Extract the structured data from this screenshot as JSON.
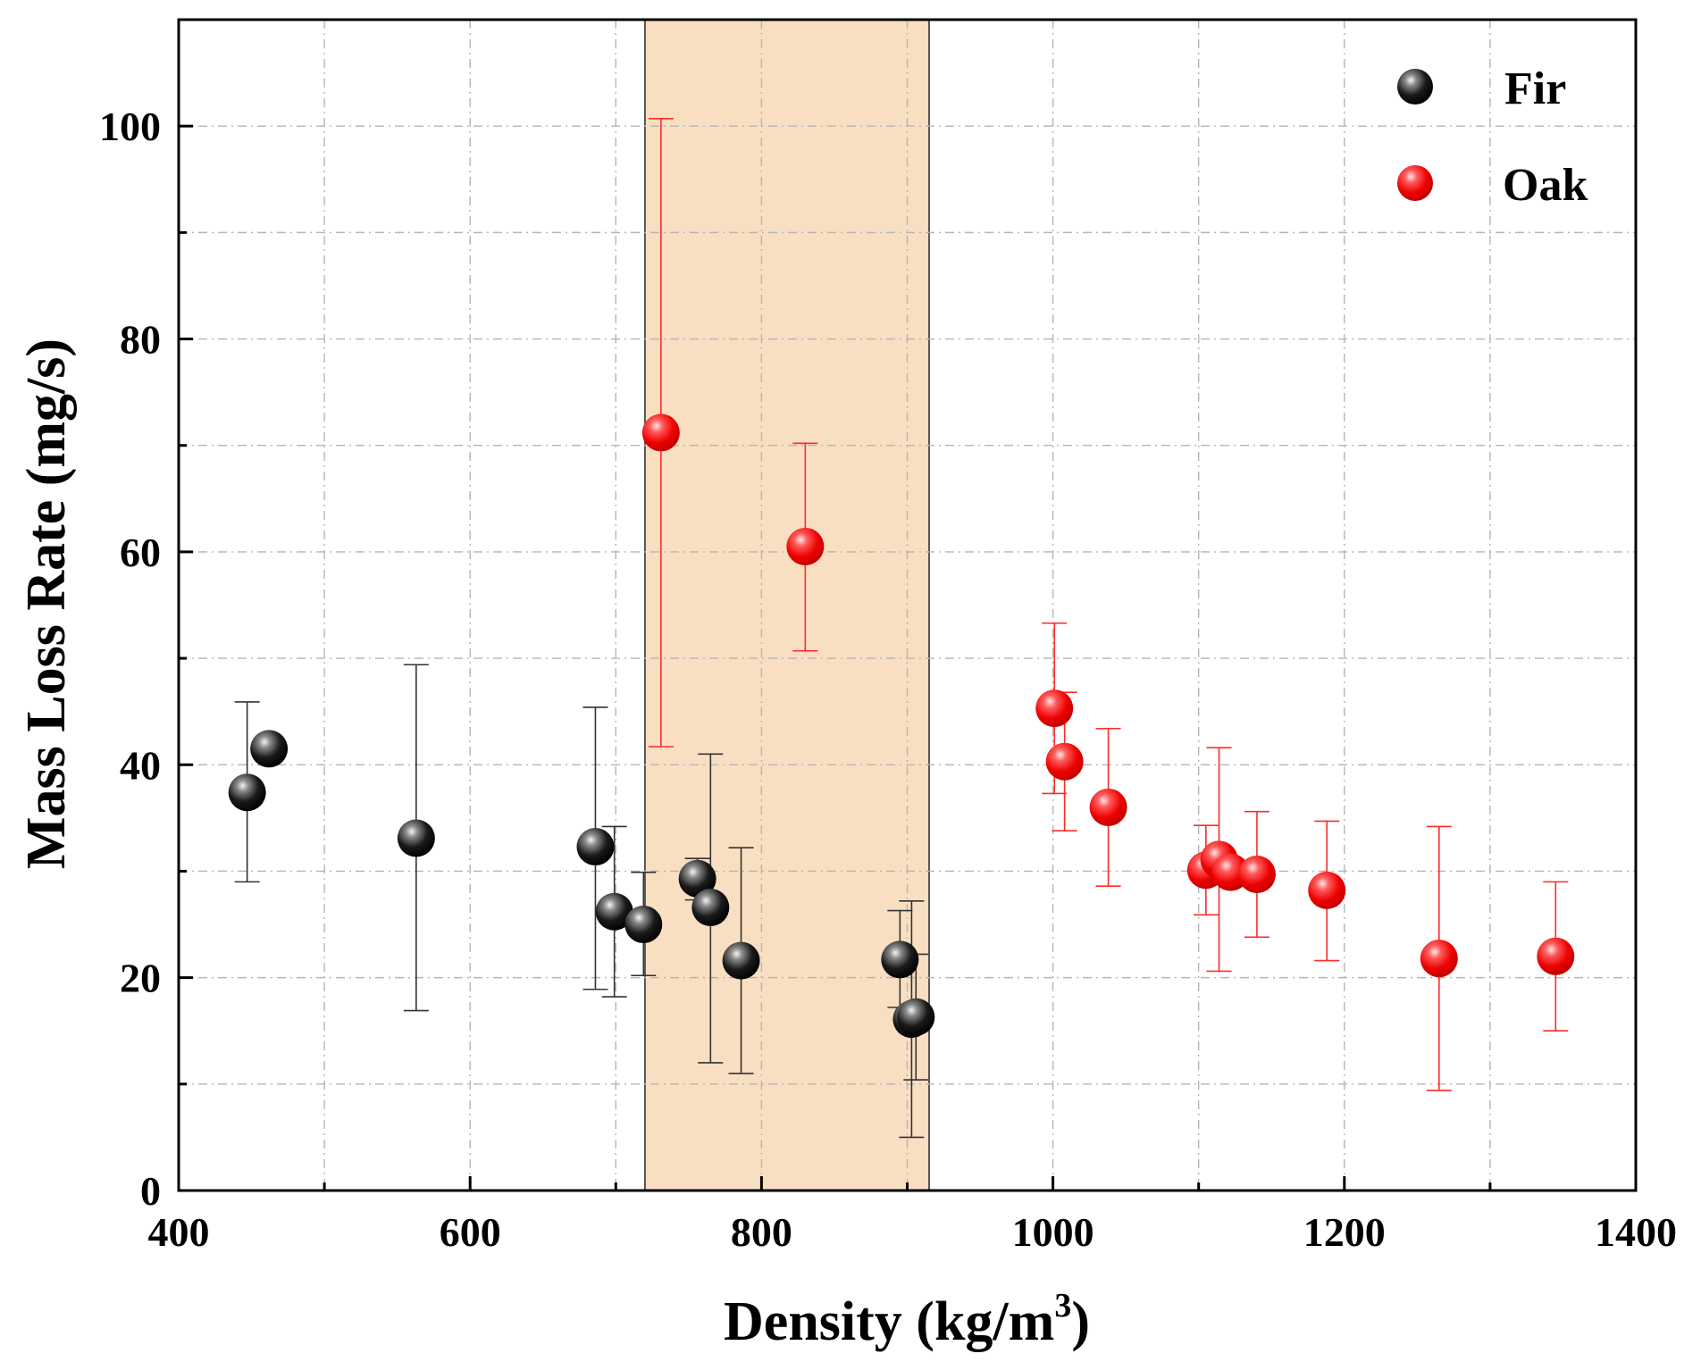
{
  "chart_data": {
    "type": "scatter",
    "xlabel": "Density (kg/m",
    "xlabel_sup": "3",
    "xlabel_close": ")",
    "ylabel": "Mass Loss Rate (mg/s)",
    "xlim": [
      400,
      1400
    ],
    "ylim": [
      0,
      110
    ],
    "x_ticks": [
      "400",
      "600",
      "800",
      "1000",
      "1200",
      "1400"
    ],
    "y_ticks": [
      "0",
      "20",
      "40",
      "60",
      "80",
      "100"
    ],
    "grid": true,
    "legend_position": "top-right",
    "shaded_region": {
      "x_start": 720,
      "x_end": 915,
      "color": "#f9dfc2"
    },
    "series": [
      {
        "name": "Fir",
        "color": "#000000",
        "points": [
          {
            "x": 447,
            "y": 37.4,
            "lo": 29.0,
            "hi": 45.9
          },
          {
            "x": 462,
            "y": 41.5,
            "lo": 41.5,
            "hi": 42.2
          },
          {
            "x": 563,
            "y": 33.1,
            "lo": 16.9,
            "hi": 49.4
          },
          {
            "x": 686,
            "y": 32.3,
            "lo": 18.9,
            "hi": 45.4
          },
          {
            "x": 699,
            "y": 26.2,
            "lo": 18.2,
            "hi": 34.2
          },
          {
            "x": 719,
            "y": 25.0,
            "lo": 20.2,
            "hi": 29.9
          },
          {
            "x": 756,
            "y": 29.3,
            "lo": 27.3,
            "hi": 31.2
          },
          {
            "x": 765,
            "y": 26.6,
            "lo": 12.0,
            "hi": 41.0
          },
          {
            "x": 786,
            "y": 21.6,
            "lo": 11.0,
            "hi": 32.2
          },
          {
            "x": 895,
            "y": 21.7,
            "lo": 17.2,
            "hi": 26.3
          },
          {
            "x": 903,
            "y": 16.1,
            "lo": 5.0,
            "hi": 27.2
          },
          {
            "x": 906,
            "y": 16.3,
            "lo": 10.4,
            "hi": 22.2
          }
        ]
      },
      {
        "name": "Oak",
        "color": "#ff0000",
        "points": [
          {
            "x": 731,
            "y": 71.2,
            "lo": 41.7,
            "hi": 100.7
          },
          {
            "x": 830,
            "y": 60.5,
            "lo": 50.7,
            "hi": 70.2
          },
          {
            "x": 1001,
            "y": 45.3,
            "lo": 37.3,
            "hi": 53.3
          },
          {
            "x": 1008,
            "y": 40.3,
            "lo": 33.8,
            "hi": 46.8
          },
          {
            "x": 1038,
            "y": 36.0,
            "lo": 28.6,
            "hi": 43.4
          },
          {
            "x": 1105,
            "y": 30.1,
            "lo": 25.9,
            "hi": 34.3
          },
          {
            "x": 1114,
            "y": 31.1,
            "lo": 20.6,
            "hi": 41.6
          },
          {
            "x": 1122,
            "y": 29.9,
            "lo": 29.9,
            "hi": 29.9
          },
          {
            "x": 1140,
            "y": 29.7,
            "lo": 23.8,
            "hi": 35.6
          },
          {
            "x": 1188,
            "y": 28.2,
            "lo": 21.6,
            "hi": 34.7
          },
          {
            "x": 1265,
            "y": 21.8,
            "lo": 9.4,
            "hi": 34.2
          },
          {
            "x": 1345,
            "y": 22.0,
            "lo": 15.0,
            "hi": 29.0
          }
        ]
      }
    ]
  }
}
